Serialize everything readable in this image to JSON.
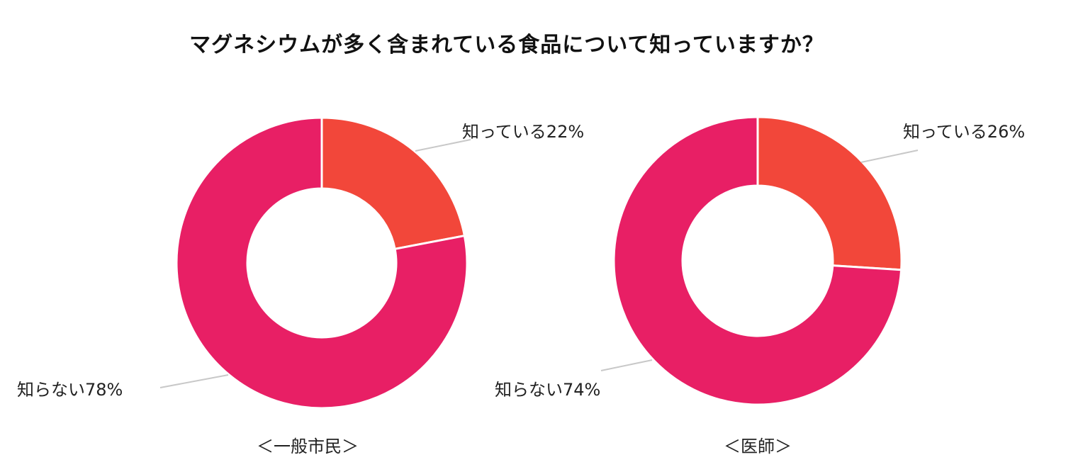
{
  "title": "マグネシウムが多く含まれている食品について知っていますか？",
  "colors": {
    "know": "#F2473A",
    "dont_know": "#E81F65",
    "leader": "#C8C8C8",
    "separator": "#FFFFFF"
  },
  "chart_data": [
    {
      "type": "pie",
      "style": "donut",
      "group_label": "＜一般市民＞",
      "slices": [
        {
          "label": "知っている",
          "value": 22,
          "display": "知っている22%",
          "color_key": "know"
        },
        {
          "label": "知らない",
          "value": 78,
          "display": "知らない78%",
          "color_key": "dont_know"
        }
      ]
    },
    {
      "type": "pie",
      "style": "donut",
      "group_label": "＜医師＞",
      "slices": [
        {
          "label": "知っている",
          "value": 26,
          "display": "知っている26%",
          "color_key": "know"
        },
        {
          "label": "知らない",
          "value": 74,
          "display": "知らない74%",
          "color_key": "dont_know"
        }
      ]
    }
  ]
}
